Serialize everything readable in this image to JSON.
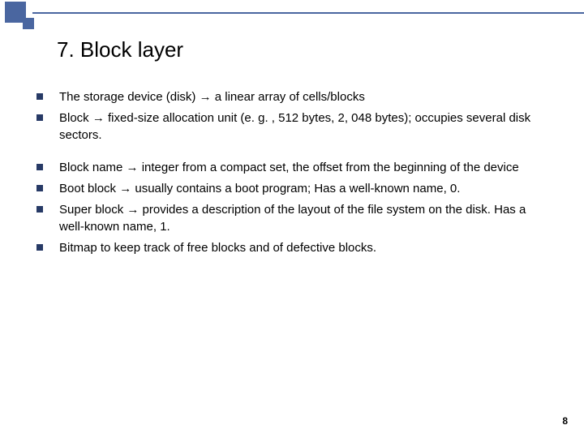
{
  "deco": {
    "square_color": "#4a66a0",
    "line_color": "#4a66a0"
  },
  "title": "7. Block layer",
  "bullet_color": "#273a66",
  "groups": [
    {
      "items": [
        "The storage device (disk) → a linear array of cells/blocks",
        "Block → fixed-size allocation unit (e. g. , 512 bytes, 2, 048 bytes); occupies several disk sectors."
      ]
    },
    {
      "items": [
        "Block name → integer from a compact set, the offset from the beginning of the device",
        "Boot block → usually contains a boot program; Has a well-known name, 0.",
        "Super block → provides a description of the layout of the file system on the disk. Has a well-known name, 1.",
        "Bitmap to keep track of free blocks and of defective blocks."
      ]
    }
  ],
  "page_number": "8"
}
